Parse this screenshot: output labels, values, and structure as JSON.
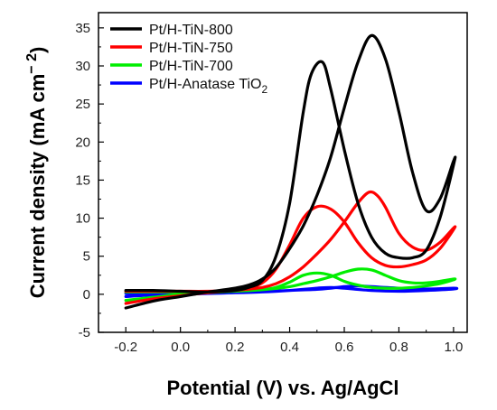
{
  "chart_data": {
    "type": "line",
    "xlabel": "Potential (V) vs. Ag/AgCl",
    "ylabel_main": "Current density (mA cm",
    "ylabel_exponent": "− 2",
    "ylabel_close": ")",
    "xlim": [
      -0.3,
      1.05
    ],
    "ylim": [
      -5,
      37
    ],
    "x_ticks": [
      -0.2,
      0.0,
      0.2,
      0.4,
      0.6,
      0.8,
      1.0
    ],
    "x_tick_labels": [
      "-0.2",
      "0.0",
      "0.2",
      "0.4",
      "0.6",
      "0.8",
      "1.0"
    ],
    "y_ticks": [
      -5,
      0,
      5,
      10,
      15,
      20,
      25,
      30,
      35
    ],
    "y_tick_labels": [
      "-5",
      "0",
      "5",
      "10",
      "15",
      "20",
      "25",
      "30",
      "35"
    ],
    "grid": false,
    "legend_position": "top-left",
    "series": [
      {
        "name": "Pt/H-TiN-800",
        "color": "#000000",
        "x": [
          -0.2,
          -0.1,
          0.0,
          0.1,
          0.2,
          0.25,
          0.3,
          0.35,
          0.4,
          0.45,
          0.5,
          0.55,
          0.6,
          0.65,
          0.7,
          0.75,
          0.8,
          0.85,
          0.9,
          0.95,
          1.0,
          1.0,
          0.95,
          0.9,
          0.85,
          0.8,
          0.75,
          0.7,
          0.65,
          0.6,
          0.55,
          0.52,
          0.48,
          0.45,
          0.4,
          0.35,
          0.3,
          0.25,
          0.2,
          0.1,
          0.0,
          -0.1,
          -0.2
        ],
        "y": [
          -1.8,
          -0.9,
          -0.3,
          0.3,
          0.8,
          1.2,
          2.0,
          3.5,
          6.0,
          9.0,
          13.0,
          18.0,
          24.5,
          30.5,
          34.0,
          31.0,
          24.0,
          16.0,
          11.0,
          12.5,
          17.5,
          17.0,
          10.0,
          5.8,
          4.8,
          4.8,
          5.4,
          7.5,
          12.0,
          19.0,
          27.0,
          30.5,
          29.0,
          24.0,
          12.0,
          5.0,
          1.8,
          0.9,
          0.5,
          0.3,
          0.4,
          0.5,
          0.5
        ]
      },
      {
        "name": "Pt/H-TiN-750",
        "color": "#ff0000",
        "x": [
          -0.2,
          -0.1,
          0.0,
          0.1,
          0.2,
          0.3,
          0.35,
          0.4,
          0.45,
          0.5,
          0.55,
          0.6,
          0.65,
          0.69,
          0.72,
          0.75,
          0.8,
          0.85,
          0.9,
          0.95,
          1.0,
          1.0,
          0.95,
          0.9,
          0.85,
          0.8,
          0.75,
          0.7,
          0.65,
          0.6,
          0.55,
          0.5,
          0.45,
          0.4,
          0.35,
          0.3,
          0.25,
          0.2,
          0.1,
          0.0,
          -0.1,
          -0.2
        ],
        "y": [
          -1.2,
          -0.6,
          -0.2,
          0.2,
          0.5,
          0.9,
          1.4,
          2.3,
          3.6,
          5.3,
          7.2,
          9.5,
          12.0,
          13.4,
          13.0,
          11.5,
          8.0,
          6.2,
          5.8,
          6.8,
          8.7,
          8.5,
          6.0,
          4.5,
          3.9,
          3.6,
          3.8,
          4.8,
          6.8,
          9.5,
          11.2,
          11.5,
          10.0,
          6.5,
          3.3,
          1.5,
          0.8,
          0.5,
          0.4,
          0.4,
          0.4,
          0.4
        ]
      },
      {
        "name": "Pt/H-TiN-700",
        "color": "#00ee00",
        "x": [
          -0.2,
          -0.1,
          0.0,
          0.1,
          0.2,
          0.3,
          0.4,
          0.45,
          0.5,
          0.55,
          0.6,
          0.65,
          0.7,
          0.75,
          0.8,
          0.85,
          0.9,
          0.95,
          1.0,
          1.0,
          0.95,
          0.9,
          0.85,
          0.8,
          0.75,
          0.7,
          0.65,
          0.6,
          0.55,
          0.5,
          0.45,
          0.4,
          0.35,
          0.3,
          0.2,
          0.1,
          0.0,
          -0.1,
          -0.2
        ],
        "y": [
          -0.8,
          -0.4,
          0.0,
          0.2,
          0.4,
          0.6,
          1.0,
          1.4,
          1.8,
          2.3,
          2.9,
          3.3,
          3.2,
          2.5,
          1.8,
          1.5,
          1.5,
          1.7,
          2.0,
          1.9,
          1.4,
          1.1,
          0.9,
          0.8,
          0.8,
          0.9,
          1.2,
          1.7,
          2.5,
          2.8,
          2.5,
          1.6,
          0.9,
          0.6,
          0.4,
          0.3,
          0.3,
          0.3,
          0.3
        ]
      },
      {
        "name": "Pt/H-Anatase TiO",
        "name_subscript": "2",
        "color": "#0000ff",
        "x": [
          -0.2,
          -0.1,
          0.0,
          0.1,
          0.2,
          0.3,
          0.4,
          0.5,
          0.55,
          0.6,
          0.65,
          0.7,
          0.8,
          0.9,
          1.0,
          1.0,
          0.9,
          0.8,
          0.7,
          0.6,
          0.55,
          0.5,
          0.4,
          0.3,
          0.2,
          0.1,
          0.0,
          -0.1,
          -0.2
        ],
        "y": [
          -0.3,
          -0.1,
          0.0,
          0.1,
          0.2,
          0.35,
          0.5,
          0.65,
          0.8,
          1.0,
          1.1,
          1.0,
          0.8,
          0.7,
          0.8,
          0.7,
          0.5,
          0.4,
          0.5,
          0.8,
          0.9,
          0.8,
          0.5,
          0.3,
          0.2,
          0.15,
          0.15,
          0.15,
          0.1
        ]
      }
    ]
  }
}
